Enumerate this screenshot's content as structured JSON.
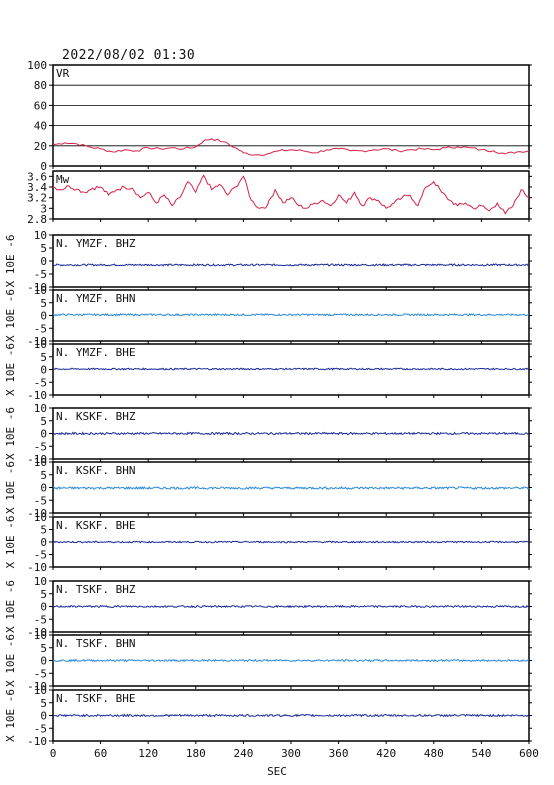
{
  "chart_data": {
    "type": "line",
    "title": "2022/08/02 01:30",
    "xlabel": "SEC",
    "xlim": [
      0,
      600
    ],
    "x_ticks": [
      0,
      60,
      120,
      180,
      240,
      300,
      360,
      420,
      480,
      540,
      600
    ],
    "seismo_ylabel": "X 10E -6",
    "panels": [
      {
        "label": "VR",
        "kind": "line",
        "color": "#d6224a",
        "ylim": [
          0,
          100
        ],
        "yticks": [
          0,
          20,
          40,
          60,
          80,
          100
        ],
        "grid": true,
        "series": {
          "x": [
            0,
            15,
            30,
            45,
            60,
            75,
            90,
            105,
            120,
            135,
            150,
            165,
            180,
            190,
            200,
            215,
            230,
            240,
            255,
            270,
            285,
            300,
            315,
            330,
            345,
            360,
            375,
            390,
            405,
            420,
            435,
            450,
            465,
            480,
            495,
            510,
            525,
            540,
            555,
            570,
            585,
            600
          ],
          "values": [
            21,
            23,
            22,
            19,
            17,
            14,
            16,
            15,
            18,
            17,
            18,
            17,
            19,
            25,
            27,
            24,
            18,
            13,
            11,
            12,
            15,
            16,
            15,
            13,
            16,
            17,
            15,
            15,
            16,
            17,
            15,
            16,
            17,
            16,
            18,
            19,
            18,
            16,
            15,
            12,
            14,
            15
          ]
        }
      },
      {
        "label": "Mw",
        "kind": "line",
        "color": "#d6224a",
        "ylim": [
          2.8,
          3.7
        ],
        "yticks": [
          2.8,
          3.0,
          3.2,
          3.4,
          3.6
        ],
        "grid": false,
        "series": {
          "x": [
            0,
            10,
            20,
            30,
            40,
            50,
            60,
            70,
            80,
            90,
            100,
            110,
            120,
            130,
            140,
            150,
            160,
            170,
            180,
            190,
            200,
            210,
            220,
            230,
            240,
            250,
            260,
            270,
            280,
            290,
            300,
            310,
            320,
            330,
            340,
            350,
            360,
            370,
            380,
            390,
            400,
            410,
            420,
            430,
            440,
            450,
            460,
            470,
            480,
            490,
            500,
            510,
            520,
            530,
            540,
            550,
            560,
            570,
            580,
            590,
            600
          ],
          "values": [
            3.4,
            3.35,
            3.42,
            3.36,
            3.3,
            3.38,
            3.4,
            3.25,
            3.35,
            3.4,
            3.38,
            3.2,
            3.3,
            3.1,
            3.25,
            3.05,
            3.2,
            3.5,
            3.3,
            3.62,
            3.35,
            3.45,
            3.25,
            3.4,
            3.6,
            3.15,
            3.0,
            3.05,
            3.35,
            3.1,
            3.2,
            3.05,
            3.0,
            3.1,
            3.15,
            3.05,
            3.25,
            3.1,
            3.3,
            3.05,
            3.2,
            3.15,
            3.0,
            3.1,
            3.2,
            3.25,
            3.05,
            3.4,
            3.5,
            3.3,
            3.15,
            3.05,
            3.1,
            3.0,
            3.05,
            2.95,
            3.1,
            2.9,
            3.05,
            3.35,
            3.2
          ]
        }
      },
      {
        "label": "N. YMZF. BHZ",
        "kind": "seismo",
        "color": "#1a2a9a",
        "ylim": [
          -10,
          10
        ],
        "yticks": [
          -10,
          -5,
          0,
          5,
          10
        ],
        "baseline": -1.5,
        "noise": 0.35
      },
      {
        "label": "N. YMZF. BHN",
        "kind": "seismo",
        "color": "#2a8ad8",
        "ylim": [
          -10,
          10
        ],
        "yticks": [
          -10,
          -5,
          0,
          5,
          10
        ],
        "baseline": 0.3,
        "noise": 0.35
      },
      {
        "label": "N. YMZF. BHE",
        "kind": "seismo",
        "color": "#1a2a9a",
        "ylim": [
          -10,
          10
        ],
        "yticks": [
          -10,
          -5,
          0,
          5,
          10
        ],
        "baseline": 0.2,
        "noise": 0.3
      },
      {
        "label": "N. KSKF. BHZ",
        "kind": "seismo",
        "color": "#1a2a9a",
        "ylim": [
          -10,
          10
        ],
        "yticks": [
          -10,
          -5,
          0,
          5,
          10
        ],
        "baseline": 0.0,
        "noise": 0.4
      },
      {
        "label": "N. KSKF. BHN",
        "kind": "seismo",
        "color": "#2a8ad8",
        "ylim": [
          -10,
          10
        ],
        "yticks": [
          -10,
          -5,
          0,
          5,
          10
        ],
        "baseline": -0.2,
        "noise": 0.45
      },
      {
        "label": "N. KSKF. BHE",
        "kind": "seismo",
        "color": "#1a2a9a",
        "ylim": [
          -10,
          10
        ],
        "yticks": [
          -10,
          -5,
          0,
          5,
          10
        ],
        "baseline": 0.0,
        "noise": 0.3
      },
      {
        "label": "N. TSKF. BHZ",
        "kind": "seismo",
        "color": "#1a2a9a",
        "ylim": [
          -10,
          10
        ],
        "yticks": [
          -10,
          -5,
          0,
          5,
          10
        ],
        "baseline": 0.0,
        "noise": 0.35
      },
      {
        "label": "N. TSKF. BHN",
        "kind": "seismo",
        "color": "#2a8ad8",
        "ylim": [
          -10,
          10
        ],
        "yticks": [
          -10,
          -5,
          0,
          5,
          10
        ],
        "baseline": 0.0,
        "noise": 0.35
      },
      {
        "label": "N. TSKF. BHE",
        "kind": "seismo",
        "color": "#1a2a9a",
        "ylim": [
          -10,
          10
        ],
        "yticks": [
          -10,
          -5,
          0,
          5,
          10
        ],
        "baseline": 0.0,
        "noise": 0.4
      }
    ]
  }
}
